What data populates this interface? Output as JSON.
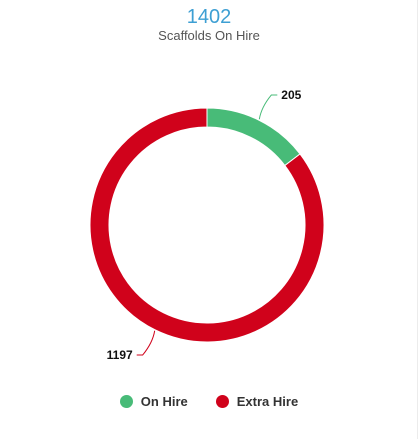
{
  "chart_data": {
    "type": "pie",
    "title": "1402",
    "subtitle": "Scaffolds On Hire",
    "categories": [
      "On Hire",
      "Extra Hire"
    ],
    "values": [
      205,
      1197
    ],
    "colors": [
      "#48bb78",
      "#d0021b"
    ],
    "data_labels": [
      "205",
      "1197"
    ],
    "legend_position": "bottom"
  }
}
